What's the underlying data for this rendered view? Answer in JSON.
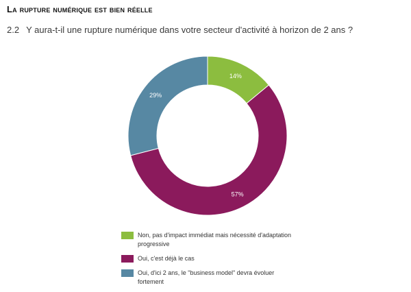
{
  "heading": "La rupture numérique est bien réelle",
  "question": {
    "number": "2.2",
    "text": "Y aura-t-il une rupture numérique dans votre secteur d'activité à horizon de 2 ans ?"
  },
  "chart_data": {
    "type": "pie",
    "donut": true,
    "series": [
      {
        "name": "Non, pas d'impact immédiat mais nécessité d'adaptation progressive",
        "value": 14,
        "label": "14%",
        "color": "#8cbd3f"
      },
      {
        "name": "Oui, c'est déjà le cas",
        "value": 57,
        "label": "57%",
        "color": "#8b1a5c"
      },
      {
        "name": "Oui, d'ici 2 ans, le \"business model\" devra évoluer fortement",
        "value": 29,
        "label": "29%",
        "color": "#5788a3"
      }
    ],
    "legend_position": "bottom"
  }
}
